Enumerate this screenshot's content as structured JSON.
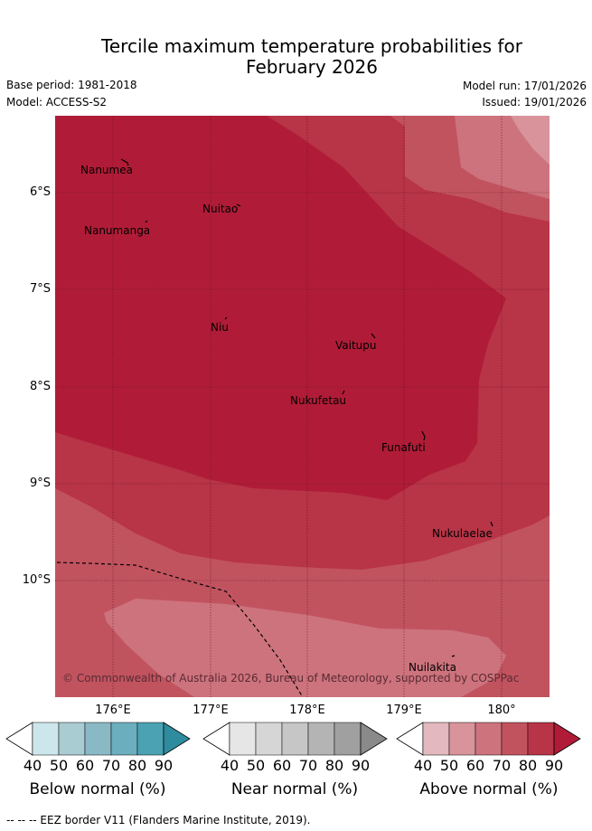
{
  "title_line1": "Tercile maximum temperature probabilities for",
  "title_line2": "February 2026",
  "base_period": "Base period: 1981-2018",
  "model": "Model: ACCESS-S2",
  "model_run": "Model run: 17/01/2026",
  "issued": "Issued: 19/01/2026",
  "lat_labels": [
    "6°S",
    "7°S",
    "8°S",
    "9°S",
    "10°S"
  ],
  "lon_labels": [
    "176°E",
    "177°E",
    "178°E",
    "179°E",
    "180°"
  ],
  "places": [
    {
      "name": "Nanumea"
    },
    {
      "name": "Nuitao"
    },
    {
      "name": "Nanumanga"
    },
    {
      "name": "Niu"
    },
    {
      "name": "Vaitupu"
    },
    {
      "name": "Nukufetau"
    },
    {
      "name": "Funafuti"
    },
    {
      "name": "Nukulaelae"
    },
    {
      "name": "Nuilakita"
    }
  ],
  "copyright": "© Commonwealth of Australia 2026, Bureau of Meteorology, supported by COSPPac",
  "colorbars": [
    {
      "title": "Below normal (%)",
      "ticks": [
        "40",
        "50",
        "60",
        "70",
        "80",
        "90"
      ],
      "colors": [
        "#cde6eb",
        "#a9cbd2",
        "#8ab9c6",
        "#6baebe",
        "#4aa2b3",
        "#2e8c9e"
      ]
    },
    {
      "title": "Near normal (%)",
      "ticks": [
        "40",
        "50",
        "60",
        "70",
        "80",
        "90"
      ],
      "colors": [
        "#e6e6e6",
        "#d6d6d6",
        "#c6c6c6",
        "#b4b4b4",
        "#a0a0a0",
        "#8a8a8a"
      ]
    },
    {
      "title": "Above normal (%)",
      "ticks": [
        "40",
        "50",
        "60",
        "70",
        "80",
        "90"
      ],
      "colors": [
        "#e3b8be",
        "#d8939b",
        "#cd737d",
        "#c1535f",
        "#b83447",
        "#b01c37"
      ]
    }
  ],
  "footer": "--  --  -- EEZ border V11 (Flanders Marine Institute, 2019).",
  "colors": {
    "above_90": "#b01c37",
    "above_80": "#b83447",
    "above_70": "#c1535f",
    "above_60": "#cd737d",
    "above_50": "#d8939b"
  }
}
